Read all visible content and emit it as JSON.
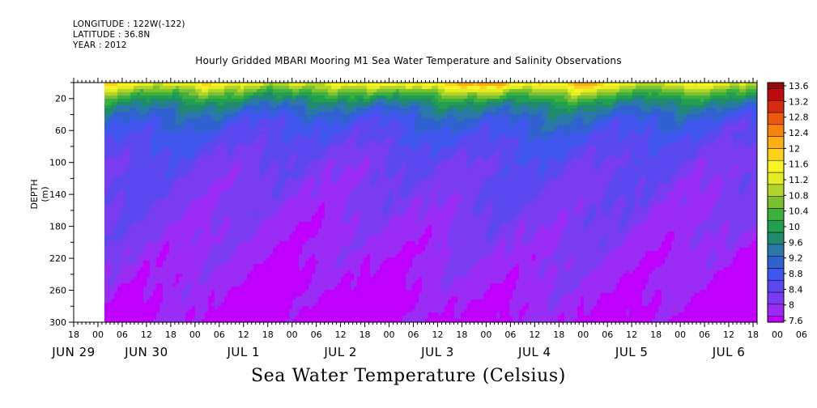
{
  "header": {
    "longitude": "LONGITUDE : 122W(-122)",
    "latitude": "LATITUDE : 36.8N",
    "year": "YEAR : 2012"
  },
  "chart_data": {
    "type": "heatmap",
    "title": "Hourly Gridded MBARI Mooring M1 Sea Water Temperature and Salinity Observations",
    "xlabel": "Sea Water Temperature (Celsius)",
    "ylabel": "DEPTH (m)",
    "y_axis": {
      "min": 0,
      "max": 300,
      "inverted": true,
      "tick_labels": [
        "20",
        "60",
        "100",
        "140",
        "180",
        "220",
        "260",
        "300"
      ],
      "tick_values": [
        20,
        60,
        100,
        140,
        180,
        220,
        260,
        300
      ]
    },
    "x_axis": {
      "start": "2012-06-29 18:00",
      "end": "2012-07-06 19:00",
      "hour_labels": [
        "18",
        "00",
        "06",
        "12",
        "18",
        "00",
        "06",
        "12",
        "18",
        "00",
        "06",
        "12",
        "18",
        "00",
        "06",
        "12",
        "18",
        "00",
        "06",
        "12",
        "18",
        "00",
        "06",
        "12",
        "18",
        "00",
        "06",
        "12",
        "18",
        "00",
        "06",
        "12",
        "18"
      ],
      "date_labels": [
        "JUN 29",
        "JUN 30",
        "JUL  1",
        "JUL  2",
        "JUL  3",
        "JUL  4",
        "JUL  5",
        "JUL  6"
      ],
      "data_start": "2012-06-30 02:00"
    },
    "colorbar": {
      "labels": [
        "7.6",
        "8",
        "8.4",
        "8.8",
        "9.2",
        "9.6",
        "10",
        "10.4",
        "10.8",
        "11.2",
        "11.6",
        "12",
        "12.4",
        "12.8",
        "13.2",
        "13.6"
      ],
      "min": 7.6,
      "max": 13.6,
      "step": 0.4,
      "colors": [
        "#c000ff",
        "#9b2cf5",
        "#7a3cf0",
        "#5a47f0",
        "#3f55ee",
        "#2f62cf",
        "#2a78a8",
        "#1f8a6d",
        "#22a050",
        "#40b03c",
        "#7ac030",
        "#b2d42a",
        "#e4ec22",
        "#fbf424",
        "#fcd21c",
        "#fcae14",
        "#f88410",
        "#ec5a10",
        "#d82a10",
        "#bd0a10",
        "#9c0808"
      ]
    },
    "temperature_profile": [
      {
        "depth": 0,
        "temp": 12.6
      },
      {
        "depth": 10,
        "temp": 11.6
      },
      {
        "depth": 20,
        "temp": 10.8
      },
      {
        "depth": 30,
        "temp": 10.2
      },
      {
        "depth": 45,
        "temp": 9.6
      },
      {
        "depth": 60,
        "temp": 9.3
      },
      {
        "depth": 80,
        "temp": 9.0
      },
      {
        "depth": 100,
        "temp": 8.8
      },
      {
        "depth": 140,
        "temp": 8.6
      },
      {
        "depth": 180,
        "temp": 8.4
      },
      {
        "depth": 220,
        "temp": 8.2
      },
      {
        "depth": 260,
        "temp": 8.0
      },
      {
        "depth": 300,
        "temp": 7.8
      }
    ]
  }
}
